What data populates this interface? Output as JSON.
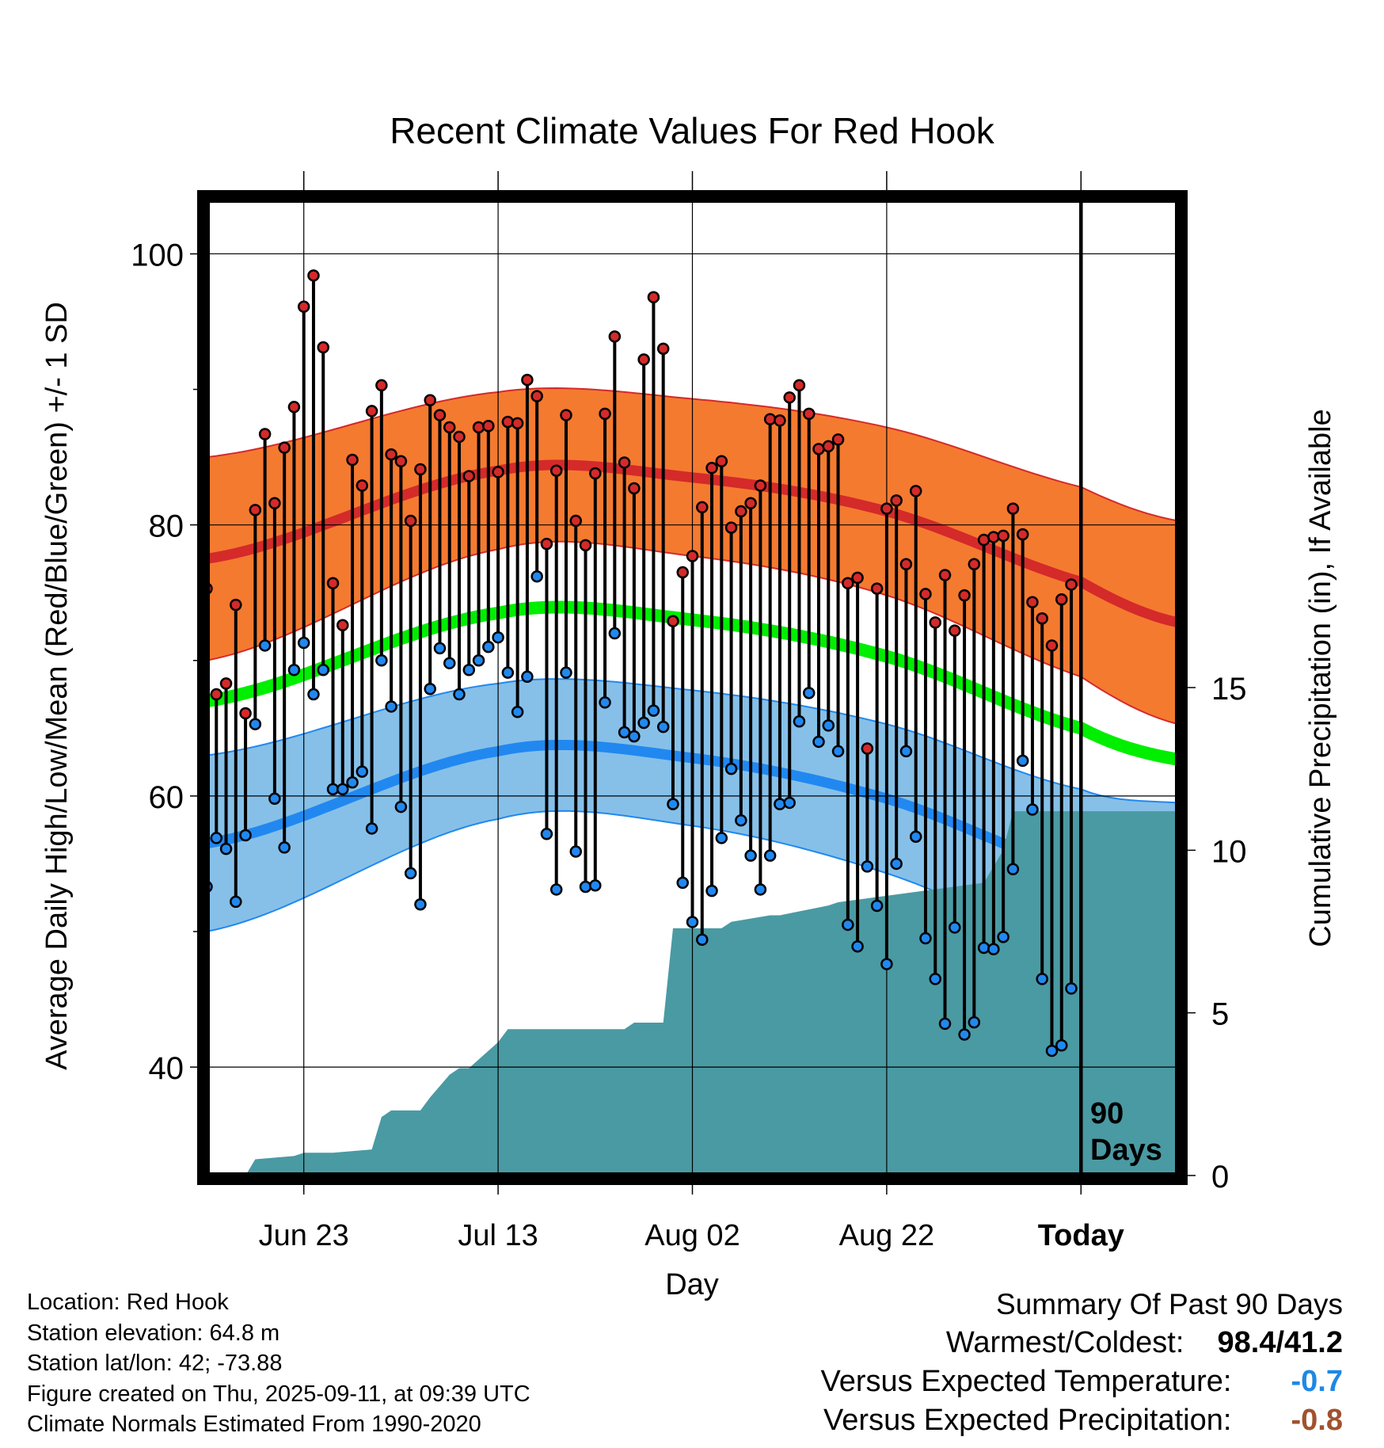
{
  "chart_data": {
    "type": "line",
    "title": "Recent Climate Values For Red Hook",
    "xlabel": "Day",
    "ylabel": "Average Daily High/Low/Mean (Red/Blue/Green) +/- 1 SD",
    "y2label": "Cumulative Precipitation (in), If Available",
    "ylim": [
      32,
      104
    ],
    "y2lim": [
      0,
      30
    ],
    "yticks": [
      40,
      60,
      80,
      100
    ],
    "y2ticks": [
      0,
      5,
      10,
      15
    ],
    "x_axis": {
      "first_day": "2025-06-13",
      "last_day": "2025-09-21",
      "today": "2025-09-11",
      "tick_dates": [
        "2025-06-23",
        "2025-07-13",
        "2025-08-02",
        "2025-08-22",
        "2025-09-11"
      ],
      "tick_labels": [
        "Jun 23",
        "Jul 13",
        "Aug 02",
        "Aug 22",
        "Today"
      ]
    },
    "today_marker_label": "90\nDays",
    "grid": true,
    "colors": {
      "high_band": "#f47a30",
      "high_line": "#d42a2a",
      "high_edge": "#d42a2a",
      "low_band": "#86c0e8",
      "low_line": "#2188f0",
      "low_edge": "#2188f0",
      "mean_line": "#00ee00",
      "precip": "#4a9aa3",
      "high_dot": "#d42a2a",
      "low_dot": "#2188f0"
    },
    "normals": {
      "note": "Expected values (centre line +/- 1 SD) at dates through the window",
      "dates": [
        "2025-06-13",
        "2025-07-13",
        "2025-08-02",
        "2025-08-22",
        "2025-09-11",
        "2025-09-21"
      ],
      "high_mean": [
        77.5,
        84.0,
        83.5,
        81.0,
        75.8,
        72.8
      ],
      "high_sd": [
        7.5,
        5.8,
        5.8,
        6.2,
        7.0,
        7.5
      ],
      "low_mean": [
        56.5,
        63.3,
        62.8,
        59.8,
        54.5,
        52.5
      ],
      "low_sd": [
        6.5,
        5.0,
        5.0,
        5.5,
        6.0,
        7.0
      ],
      "mean": [
        67.0,
        73.5,
        73.0,
        70.3,
        65.0,
        62.7
      ]
    },
    "series": [
      {
        "name": "High",
        "start_date": "2025-06-13",
        "values": [
          75.3,
          67.5,
          68.3,
          74.1,
          66.1,
          81.1,
          86.7,
          81.6,
          85.7,
          88.7,
          96.1,
          98.4,
          93.1,
          75.7,
          72.6,
          84.8,
          82.9,
          88.4,
          90.3,
          85.2,
          84.7,
          80.3,
          84.1,
          89.2,
          88.1,
          87.2,
          86.5,
          83.6,
          87.2,
          87.3,
          83.9,
          87.6,
          87.5,
          90.7,
          89.5,
          78.6,
          84.0,
          88.1,
          80.3,
          78.5,
          83.8,
          88.2,
          93.9,
          84.6,
          82.7,
          92.2,
          96.8,
          93.0,
          72.9,
          76.5,
          77.7,
          81.3,
          84.2,
          84.7,
          79.8,
          81.0,
          81.6,
          82.9,
          87.8,
          87.7,
          89.4,
          90.3,
          88.2,
          85.6,
          85.8,
          86.3,
          75.7,
          76.1,
          63.5,
          75.3,
          81.2,
          81.8,
          77.1,
          82.5,
          74.9,
          72.8,
          76.3,
          72.2,
          74.8,
          77.1,
          78.9,
          79.1,
          79.2,
          81.2,
          79.3,
          74.3,
          73.1,
          71.1,
          74.5,
          75.6
        ]
      },
      {
        "name": "Low",
        "start_date": "2025-06-13",
        "values": [
          53.3,
          56.9,
          56.1,
          52.2,
          57.1,
          65.3,
          71.1,
          59.8,
          56.2,
          69.3,
          71.3,
          67.5,
          69.3,
          60.5,
          60.5,
          61.0,
          61.8,
          57.6,
          70.0,
          66.6,
          59.2,
          54.3,
          52.0,
          67.9,
          70.9,
          69.8,
          67.5,
          69.3,
          70.0,
          71.0,
          71.7,
          69.1,
          66.2,
          68.8,
          76.2,
          57.2,
          53.1,
          69.1,
          55.9,
          53.3,
          53.4,
          66.9,
          72.0,
          64.7,
          64.4,
          65.4,
          66.3,
          65.1,
          59.4,
          53.6,
          50.7,
          49.4,
          53.0,
          56.9,
          62.0,
          58.2,
          55.6,
          53.1,
          55.6,
          59.4,
          59.5,
          65.5,
          67.6,
          64.0,
          65.2,
          63.3,
          50.5,
          48.9,
          54.8,
          51.9,
          47.6,
          55.0,
          63.3,
          57.0,
          49.5,
          46.5,
          43.2,
          50.3,
          42.4,
          43.3,
          48.8,
          48.7,
          49.6,
          54.6,
          62.6,
          59.0,
          46.5,
          41.2,
          41.6,
          45.8
        ]
      },
      {
        "name": "Cumulative Precipitation",
        "x": [
          "2025-06-13",
          "2025-06-17",
          "2025-06-18",
          "2025-06-22",
          "2025-06-23",
          "2025-06-26",
          "2025-06-30",
          "2025-07-01",
          "2025-07-02",
          "2025-07-05",
          "2025-07-06",
          "2025-07-08",
          "2025-07-09",
          "2025-07-10",
          "2025-07-13",
          "2025-07-14",
          "2025-07-26",
          "2025-07-27",
          "2025-07-30",
          "2025-07-31",
          "2025-08-05",
          "2025-08-06",
          "2025-08-10",
          "2025-08-11",
          "2025-08-16",
          "2025-08-17",
          "2025-09-01",
          "2025-09-02",
          "2025-09-03",
          "2025-09-04",
          "2025-09-21"
        ],
        "values": [
          0.0,
          0.0,
          0.5,
          0.6,
          0.7,
          0.7,
          0.8,
          1.8,
          2.0,
          2.0,
          2.4,
          3.1,
          3.3,
          3.3,
          4.1,
          4.5,
          4.5,
          4.7,
          4.7,
          7.6,
          7.6,
          7.8,
          8.0,
          8.0,
          8.3,
          8.4,
          9.0,
          9.5,
          10.0,
          11.2,
          11.2
        ]
      }
    ]
  },
  "metadata": {
    "location": "Location: Red Hook",
    "elevation": "Station elevation: 64.8 m",
    "latlon": "Station lat/lon: 42; -73.88",
    "created": "Figure created on Thu, 2025-09-11, at 09:39 UTC",
    "normals": "Climate Normals Estimated From 1990-2020"
  },
  "summary": {
    "title": "Summary Of Past 90 Days",
    "warm_cold_label": "Warmest/Coldest:",
    "warm_cold_value": "98.4/41.2",
    "temp_label": "Versus Expected Temperature:",
    "temp_value": "-0.7",
    "temp_color": "#1e88e5",
    "precip_label": "Versus Expected Precipitation:",
    "precip_value": "-0.8",
    "precip_color": "#a0522d"
  }
}
